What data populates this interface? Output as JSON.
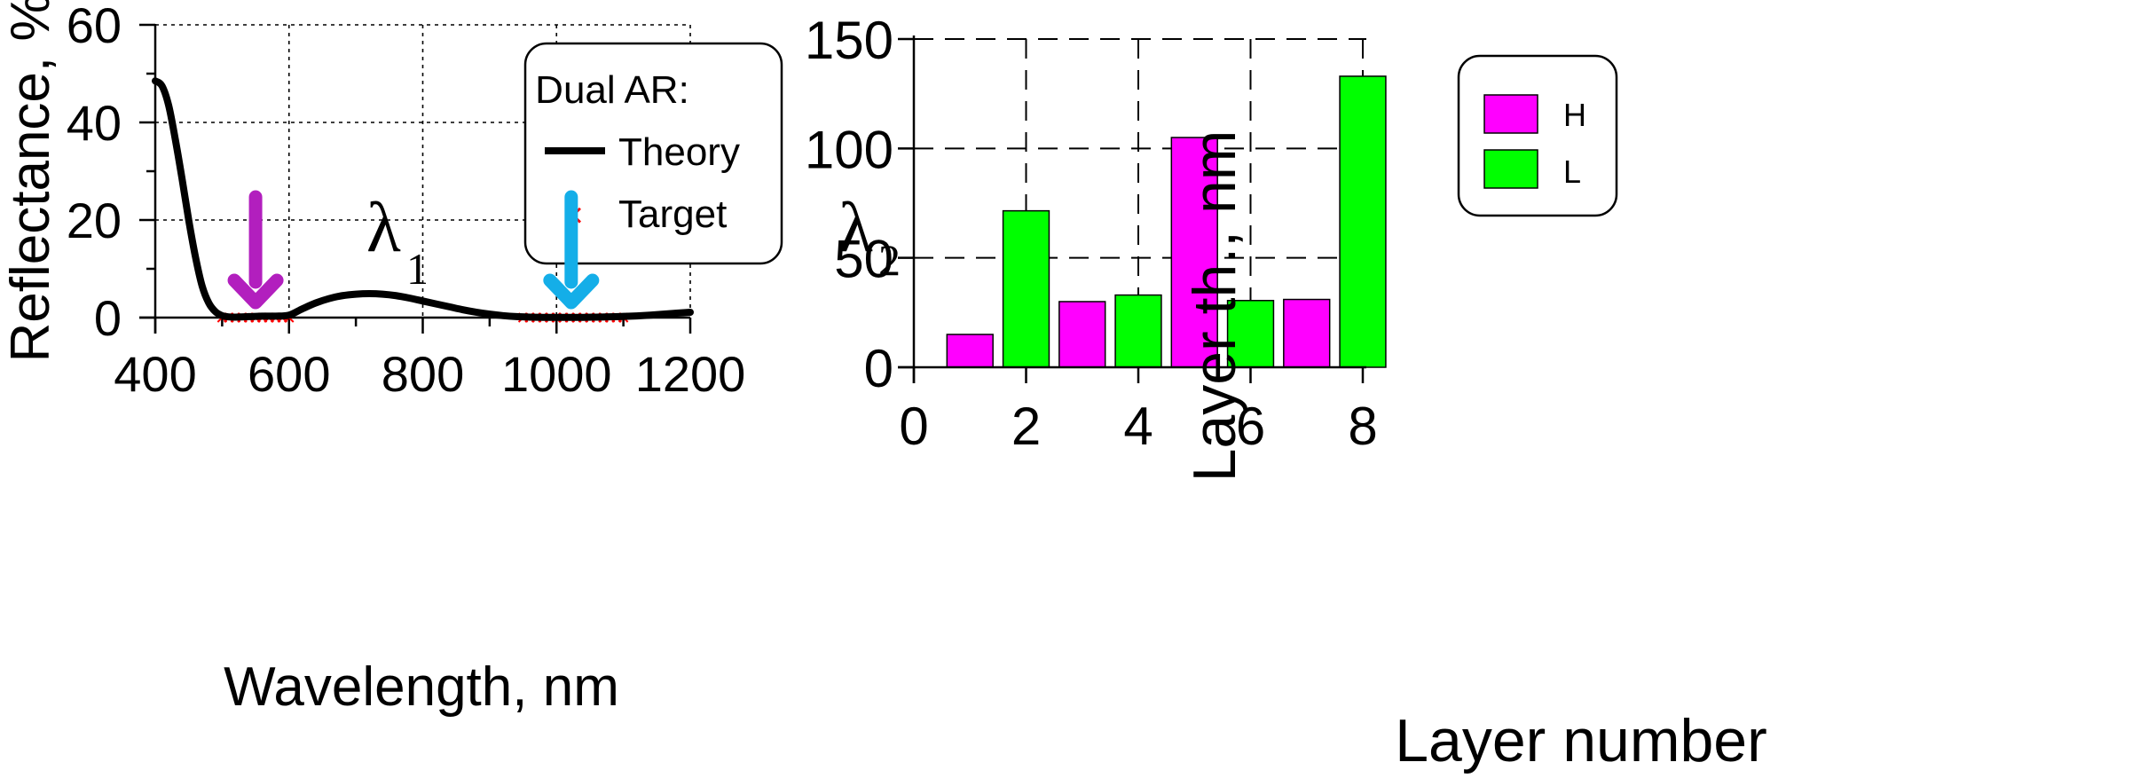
{
  "colors": {
    "theory": "#000000",
    "target": "#ff0000",
    "lambda1_arrow": "#b21fbe",
    "lambda2_arrow": "#14aee8",
    "H": "#ff00ff",
    "L": "#00ff00",
    "grid": "#000000"
  },
  "chart_data": [
    {
      "type": "line",
      "title": "",
      "xlabel": "Wavelength, nm",
      "ylabel": "Reflectance, %",
      "xlim": [
        400,
        1200
      ],
      "ylim": [
        0,
        60
      ],
      "x_ticks": [
        "400",
        "600",
        "800",
        "1000",
        "1200"
      ],
      "y_ticks": [
        "0",
        "20",
        "40",
        "60"
      ],
      "grid": true,
      "legend": {
        "title": "Dual AR:",
        "placement": "top-center",
        "entries": [
          "Theory",
          "Target"
        ]
      },
      "series": [
        {
          "name": "Theory",
          "style": "line",
          "x": [
            400,
            410,
            420,
            430,
            440,
            450,
            460,
            470,
            480,
            490,
            500,
            510,
            520,
            540,
            560,
            580,
            600,
            620,
            640,
            660,
            680,
            700,
            720,
            740,
            760,
            780,
            800,
            820,
            840,
            860,
            880,
            900,
            920,
            940,
            960,
            980,
            1000,
            1020,
            1040,
            1060,
            1080,
            1100,
            1120,
            1140,
            1160,
            1180,
            1200
          ],
          "y": [
            48.5,
            47.5,
            43.5,
            36.5,
            28.5,
            20,
            12.5,
            6.5,
            3,
            1.2,
            0.4,
            0.15,
            0.1,
            0.2,
            0.3,
            0.3,
            0.5,
            1.8,
            3.0,
            3.9,
            4.5,
            4.8,
            4.9,
            4.8,
            4.5,
            4.0,
            3.4,
            2.8,
            2.2,
            1.6,
            1.1,
            0.7,
            0.4,
            0.2,
            0.1,
            0.05,
            0.05,
            0.05,
            0.05,
            0.1,
            0.15,
            0.25,
            0.35,
            0.5,
            0.7,
            0.9,
            1.1
          ]
        },
        {
          "name": "Target",
          "style": "markers",
          "x": [
            500,
            510,
            520,
            530,
            540,
            550,
            560,
            570,
            580,
            590,
            600,
            950,
            960,
            970,
            980,
            990,
            1000,
            1010,
            1020,
            1030,
            1040,
            1050,
            1060,
            1070,
            1080,
            1090,
            1100
          ],
          "y": [
            0,
            0,
            0,
            0,
            0,
            0,
            0,
            0,
            0,
            0,
            0,
            0,
            0,
            0,
            0,
            0,
            0,
            0,
            0,
            0,
            0,
            0,
            0,
            0,
            0,
            0,
            0
          ]
        }
      ],
      "annotations": [
        {
          "label": "λ",
          "subscript": "1",
          "x": 550
        },
        {
          "label": "λ",
          "subscript": "2",
          "x": 1022
        }
      ]
    },
    {
      "type": "bar",
      "title": "",
      "xlabel": "Layer number",
      "ylabel": "Layer th., nm",
      "xlim": [
        0,
        8
      ],
      "ylim": [
        0,
        150
      ],
      "x_ticks": [
        "0",
        "2",
        "4",
        "6",
        "8"
      ],
      "y_ticks": [
        "0",
        "50",
        "100",
        "150"
      ],
      "grid": true,
      "legend": {
        "placement": "top-left",
        "entries": [
          "H",
          "L"
        ]
      },
      "categories": [
        1,
        2,
        3,
        4,
        5,
        6,
        7,
        8
      ],
      "values": [
        15,
        71.5,
        30,
        33,
        105,
        30.5,
        31,
        133
      ],
      "materials": [
        "H",
        "L",
        "H",
        "L",
        "H",
        "L",
        "H",
        "L"
      ]
    }
  ]
}
